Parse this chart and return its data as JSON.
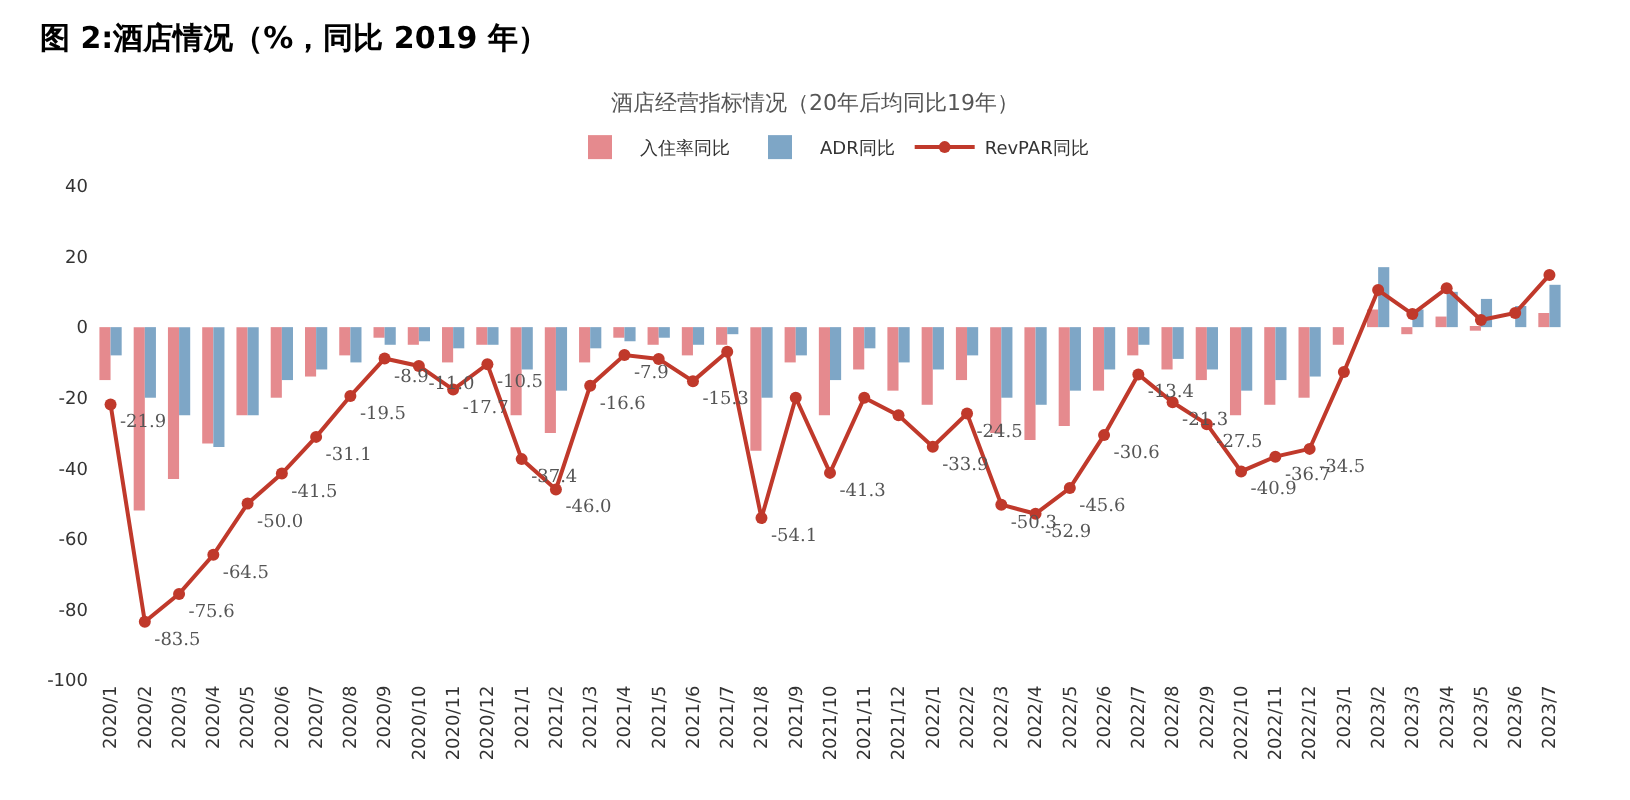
{
  "chart_data": {
    "type": "bar",
    "title": "图 2:酒店情况（%，同比 2019 年）",
    "subtitle": "酒店经营指标情况（20年后均同比19年）",
    "categories": [
      "2020/1",
      "2020/2",
      "2020/3",
      "2020/4",
      "2020/5",
      "2020/6",
      "2020/7",
      "2020/8",
      "2020/9",
      "2020/10",
      "2020/11",
      "2020/12",
      "2021/1",
      "2021/2",
      "2021/3",
      "2021/4",
      "2021/5",
      "2021/6",
      "2021/7",
      "2021/8",
      "2021/9",
      "2021/10",
      "2021/11",
      "2021/12",
      "2022/1",
      "2022/2",
      "2022/3",
      "2022/4",
      "2022/5",
      "2022/6",
      "2022/7",
      "2022/8",
      "2022/9",
      "2022/10",
      "2022/11",
      "2022/12",
      "2023/1",
      "2023/2",
      "2023/3",
      "2023/4",
      "2023/5",
      "2023/6",
      "2023/7"
    ],
    "series": [
      {
        "name": "入住率同比",
        "color": "#e58a8e",
        "values": [
          -15,
          -52,
          -43,
          -33,
          -25,
          -20,
          -14,
          -8,
          -3,
          -5,
          -10,
          -5,
          -25,
          -30,
          -10,
          -3,
          -5,
          -8,
          -5,
          -35,
          -10,
          -25,
          -12,
          -18,
          -22,
          -15,
          -30,
          -32,
          -28,
          -18,
          -8,
          -12,
          -15,
          -25,
          -22,
          -20,
          -5,
          5,
          -2,
          3,
          -1,
          0,
          4
        ]
      },
      {
        "name": "ADR同比",
        "color": "#7ea6c6",
        "values": [
          -8,
          -20,
          -25,
          -34,
          -25,
          -15,
          -12,
          -10,
          -5,
          -4,
          -6,
          -5,
          -12,
          -18,
          -6,
          -4,
          -3,
          -5,
          -2,
          -20,
          -8,
          -15,
          -6,
          -10,
          -12,
          -8,
          -20,
          -22,
          -18,
          -12,
          -5,
          -9,
          -12,
          -18,
          -15,
          -14,
          0,
          17,
          5,
          10,
          8,
          6,
          12
        ]
      },
      {
        "name": "RevPAR同比",
        "type": "line",
        "color": "#c0392b",
        "values": [
          -21.9,
          -83.5,
          -75.6,
          -64.5,
          -50.0,
          -41.5,
          -31.1,
          -19.5,
          -8.9,
          -11.0,
          -17.7,
          -10.5,
          -37.4,
          -46.0,
          -16.6,
          -7.9,
          -9,
          -15.3,
          -7,
          -54.1,
          -20,
          -41.3,
          -20,
          -25,
          -33.9,
          -24.5,
          -50.3,
          -52.9,
          -45.6,
          -30.6,
          -13.4,
          -21.3,
          -27.5,
          -40.9,
          -36.7,
          -34.5,
          -12.7,
          10.5,
          3.7,
          11,
          2,
          4,
          14.8
        ],
        "value_labels": [
          "-21.9",
          "-83.5",
          "-75.6",
          "-64.5",
          "-50.0",
          "-41.5",
          "-31.1",
          "-19.5",
          "-8.9",
          "-11.0",
          "-17.7",
          "-10.5",
          "-37.4",
          "-46.0",
          "-16.6",
          "-7.9",
          null,
          "-15.3",
          null,
          "-54.1",
          null,
          "-41.3",
          null,
          null,
          "-33.9",
          "-24.5",
          "-50.3",
          "-52.9",
          "-45.6",
          "-30.6",
          "-13.4",
          "-21.3",
          "-27.5",
          "-40.9",
          "-36.7",
          "-34.5",
          null,
          null,
          null,
          null,
          null,
          null,
          null
        ]
      }
    ],
    "ylim": [
      -100,
      40
    ],
    "yticks": [
      -100,
      -80,
      -60,
      -40,
      -20,
      0,
      20,
      40
    ],
    "grid": false,
    "legend": "top",
    "marker": "circle",
    "line_style": "solid"
  }
}
